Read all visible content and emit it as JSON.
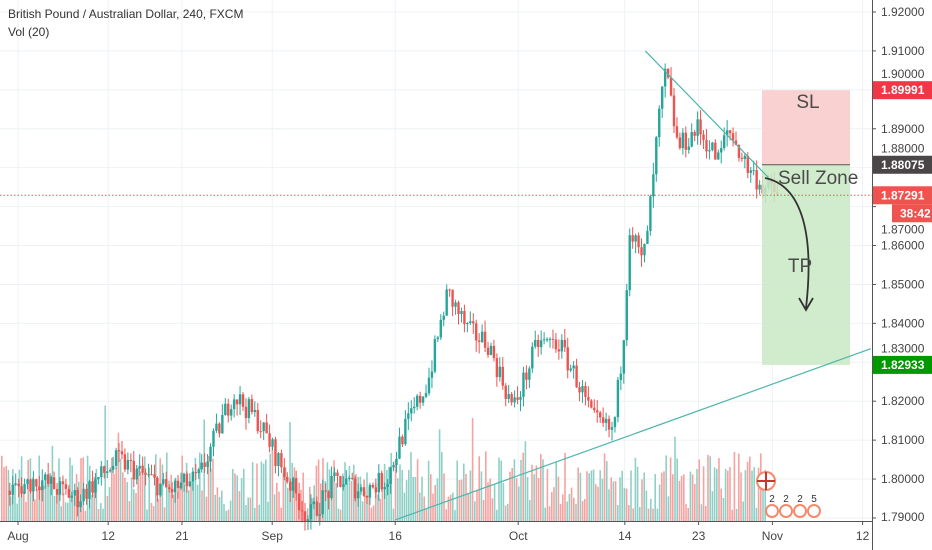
{
  "legend": {
    "title": "British Pound / Australian Dollar, 240, FXCM",
    "volume": "Vol (20)"
  },
  "colors": {
    "up": "#26a69a",
    "down": "#ef5350",
    "up_vol": "#8fd0c6",
    "down_vol": "#f5a3a1",
    "trend": "#4db6ac",
    "sl_box": "#f9c9c9",
    "tp_box": "#c9e9c4",
    "current": "#ef5350",
    "tp_label": "#009900",
    "zone_label": "#4a4a4a"
  },
  "chart_data": {
    "type": "candlestick",
    "title": "British Pound / Australian Dollar, 240, FXCM",
    "ylim": [
      1.7895,
      1.9235
    ],
    "y_ticks": [
      "1.92000",
      "1.91000",
      "1.90000",
      "1.89000",
      "1.88000",
      "1.87000",
      "1.86000",
      "1.85000",
      "1.84000",
      "1.83000",
      "1.82000",
      "1.81000",
      "1.80000",
      "1.79000"
    ],
    "x_ticks": [
      {
        "label": "Aug",
        "day": 0
      },
      {
        "label": "12",
        "day": 11
      },
      {
        "label": "21",
        "day": 20
      },
      {
        "label": "Sep",
        "day": 31
      },
      {
        "label": "16",
        "day": 46
      },
      {
        "label": "Oct",
        "day": 61
      },
      {
        "label": "14",
        "day": 74
      },
      {
        "label": "23",
        "day": 83
      },
      {
        "label": "Nov",
        "day": 92
      },
      {
        "label": "12",
        "day": 103
      }
    ],
    "price_path_days": [
      -1,
      2.4,
      7.3,
      12.2,
      18.3,
      22,
      26.2,
      29.3,
      32.9,
      35.4,
      39,
      42,
      45,
      47,
      50,
      52.4,
      54.9,
      57.3,
      60.4,
      63.4,
      65.9,
      68.3,
      70.1,
      72.6,
      73.8,
      74.6,
      76.2,
      77.4,
      78,
      79,
      80.5,
      82.9,
      85.4,
      86.6,
      89,
      90.9,
      92.7
    ],
    "price_path_close": [
      1.797,
      1.8,
      1.795,
      1.805,
      1.797,
      1.8,
      1.822,
      1.815,
      1.8,
      1.79,
      1.8,
      1.797,
      1.8,
      1.812,
      1.825,
      1.848,
      1.838,
      1.835,
      1.818,
      1.835,
      1.835,
      1.825,
      1.815,
      1.812,
      1.835,
      1.865,
      1.855,
      1.875,
      1.89,
      1.905,
      1.885,
      1.89,
      1.882,
      1.89,
      1.88,
      1.875,
      1.873
    ],
    "annotations": {
      "sl_label": "SL",
      "sell_zone_label": "Sell Zone",
      "tp_label": "TP",
      "stop_loss": 1.89991,
      "entry": 1.88075,
      "take_profit": 1.82933,
      "downtrend_line": [
        [
          76.5,
          1.91
        ],
        [
          91.5,
          1.8775
        ]
      ],
      "uptrend_line": [
        [
          46,
          1.7895
        ],
        [
          104,
          1.8335
        ]
      ]
    },
    "price_labels": {
      "stop_loss": "1.89991",
      "entry": "1.88075",
      "current": "1.87291",
      "countdown": "38:42",
      "take_profit": "1.82933"
    },
    "current_price": 1.87291,
    "events": {
      "flag": "GB",
      "counts": [
        "2",
        "2",
        "2",
        "5"
      ]
    }
  }
}
